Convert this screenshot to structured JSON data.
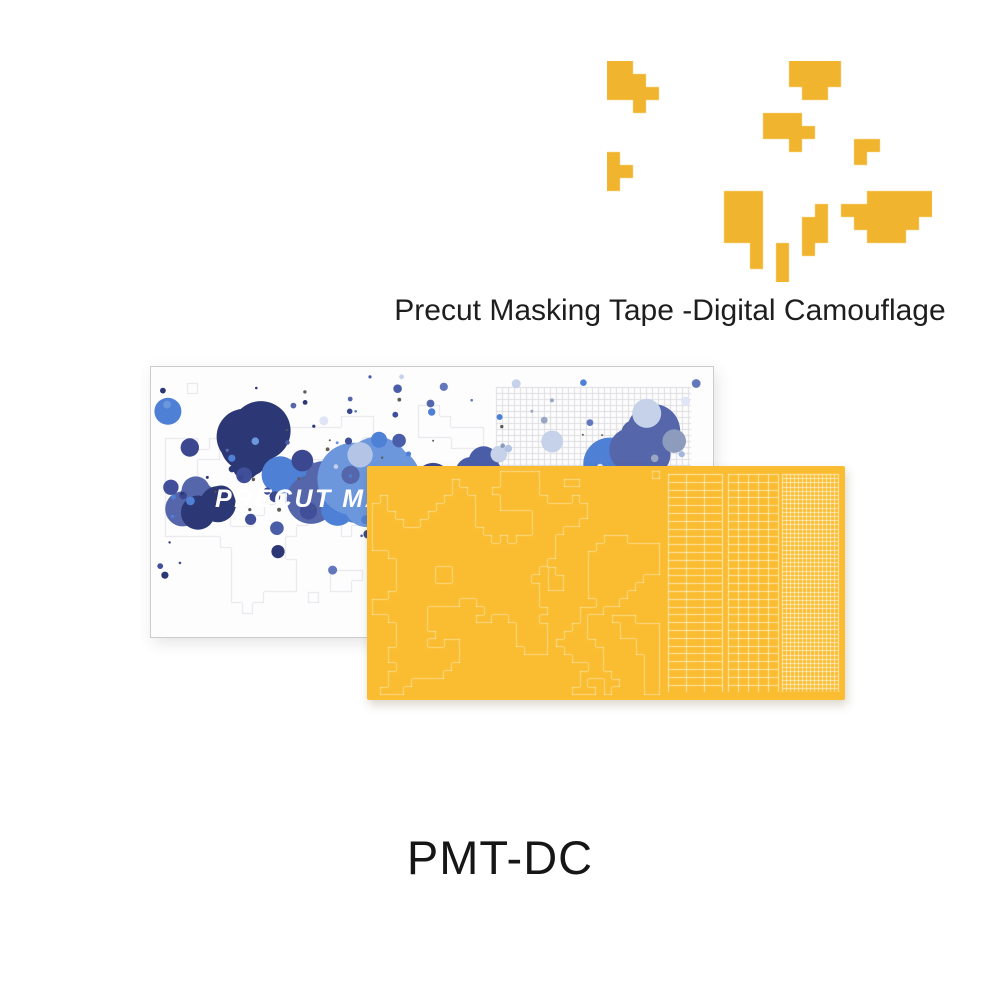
{
  "product": {
    "pattern_label": "Precut Masking Tape -Digital Camouflage",
    "sku": "PMT-DC",
    "box_print_text": "PRECUT MASKING"
  },
  "colors": {
    "swatch_yellow": "#f1b42e",
    "tape_yellow": "#fabd31",
    "tape_cut_line": "rgba(255,255,255,0.42)",
    "tape_grid_line": "rgba(255,255,255,0.6)",
    "box_pattern_line": "#e4e4e9",
    "box_grid_line": "#dcdce2",
    "text_dark": "#1e1e1e",
    "splatter": {
      "darks": [
        "#2c3775",
        "#3b4890",
        "#414f9b"
      ],
      "mids": [
        "#5566ab",
        "#6277bc",
        "#4a5da8"
      ],
      "brights": [
        "#4e80d5",
        "#6c97dd"
      ],
      "lights": [
        "#a3b7dd",
        "#c6d1ea",
        "#dfe5f4",
        "#b4c4e6"
      ],
      "grays": [
        "#8d9cbd",
        "#9aa7c4"
      ],
      "specks": "#5e5e54"
    }
  }
}
